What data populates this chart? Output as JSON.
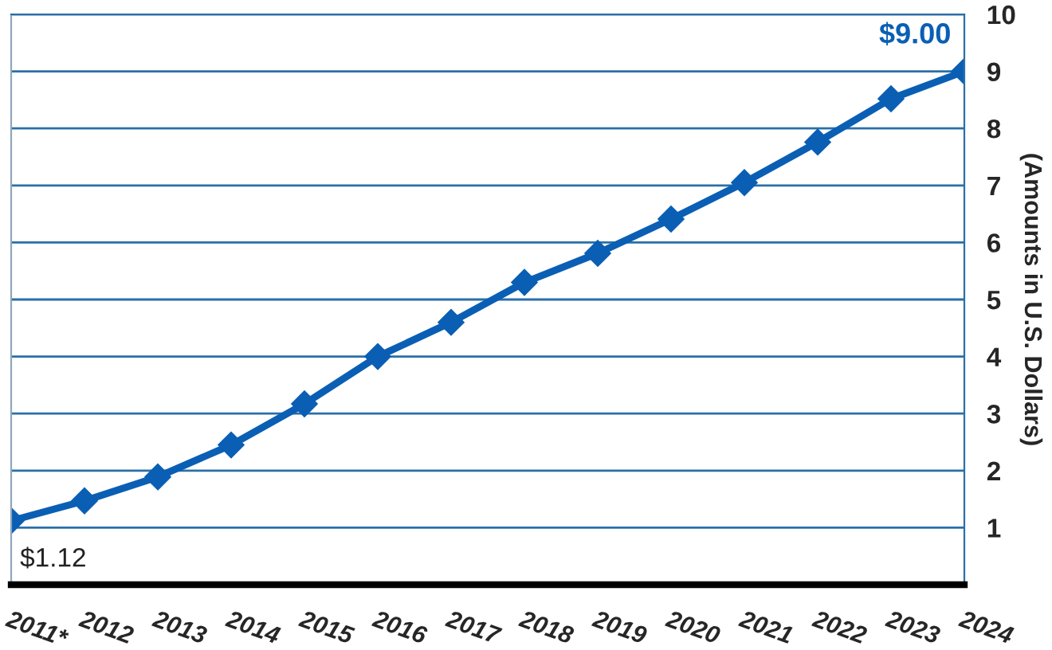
{
  "chart_data": {
    "type": "line",
    "ylabel": "(Amounts in U.S. Dollars)",
    "categories": [
      "2011*",
      "2012",
      "2013",
      "2014",
      "2015",
      "2016",
      "2017",
      "2018",
      "2019",
      "2020",
      "2021",
      "2022",
      "2023",
      "2024"
    ],
    "series": [
      {
        "color": "#0a5fb4",
        "values": [
          1.12,
          1.47,
          1.89,
          2.45,
          3.17,
          4.0,
          4.6,
          5.3,
          5.81,
          6.41,
          7.05,
          7.76,
          8.52,
          9.0
        ]
      }
    ],
    "ylim": [
      0,
      10
    ],
    "yticks": [
      1,
      2,
      3,
      4,
      5,
      6,
      7,
      8,
      9,
      10
    ],
    "grid": "y",
    "marker": "diamond",
    "line_style": "solid",
    "annotations": [
      {
        "text": "$1.12",
        "x": "2011*",
        "y": 1.12
      },
      {
        "text": "$9.00",
        "x": "2024",
        "y": 9.0
      }
    ]
  }
}
